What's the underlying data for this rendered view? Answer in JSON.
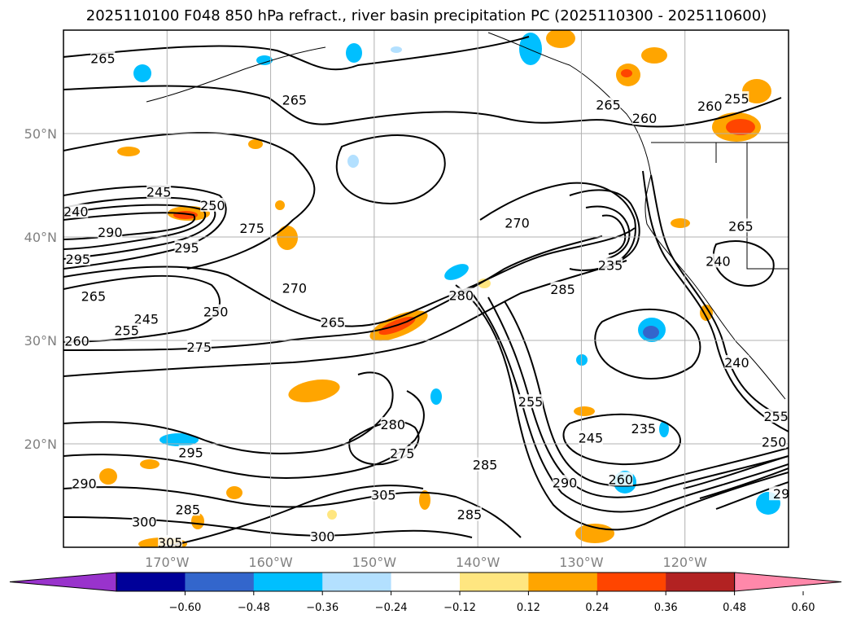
{
  "title": "2025110100 F048 850 hPa refract., river basin precipitation PC (2025110300 - 2025110600)",
  "colors": {
    "background": "#ffffff",
    "contour": "#000000",
    "grid": "#b0b0b0",
    "coast": "#000000"
  },
  "map": {
    "lon_range": [
      -180,
      -110
    ],
    "lat_range": [
      10,
      60
    ],
    "lat_ticks": [
      {
        "value": 20,
        "label": "20°N"
      },
      {
        "value": 30,
        "label": "30°N"
      },
      {
        "value": 40,
        "label": "40°N"
      },
      {
        "value": 50,
        "label": "50°N"
      }
    ],
    "lon_ticks": [
      {
        "value": -170,
        "label": "170°W"
      },
      {
        "value": -160,
        "label": "160°W"
      },
      {
        "value": -150,
        "label": "150°W"
      },
      {
        "value": -140,
        "label": "140°W"
      },
      {
        "value": -130,
        "label": "130°W"
      },
      {
        "value": -120,
        "label": "120°W"
      }
    ],
    "contour_labels": [
      {
        "text": "265",
        "lon": -176.2,
        "lat": 57.2
      },
      {
        "text": "265",
        "lon": -157.7,
        "lat": 53.2
      },
      {
        "text": "265",
        "lon": -127.4,
        "lat": 52.7
      },
      {
        "text": "260",
        "lon": -123.9,
        "lat": 51.4
      },
      {
        "text": "260",
        "lon": -117.6,
        "lat": 52.6
      },
      {
        "text": "255",
        "lon": -115.0,
        "lat": 53.3
      },
      {
        "text": "240",
        "lon": -178.8,
        "lat": 42.4
      },
      {
        "text": "245",
        "lon": -170.8,
        "lat": 44.3
      },
      {
        "text": "290",
        "lon": -175.5,
        "lat": 40.4
      },
      {
        "text": "295",
        "lon": -178.6,
        "lat": 37.8
      },
      {
        "text": "295",
        "lon": -168.1,
        "lat": 38.9
      },
      {
        "text": "275",
        "lon": -161.8,
        "lat": 40.8
      },
      {
        "text": "250",
        "lon": -165.6,
        "lat": 43.0
      },
      {
        "text": "270",
        "lon": -157.7,
        "lat": 35.0
      },
      {
        "text": "270",
        "lon": -136.2,
        "lat": 41.3
      },
      {
        "text": "265",
        "lon": -177.1,
        "lat": 34.2
      },
      {
        "text": "245",
        "lon": -172.0,
        "lat": 32.0
      },
      {
        "text": "250",
        "lon": -165.3,
        "lat": 32.7
      },
      {
        "text": "255",
        "lon": -173.9,
        "lat": 30.9
      },
      {
        "text": "260",
        "lon": -178.7,
        "lat": 29.9
      },
      {
        "text": "265",
        "lon": -154.0,
        "lat": 31.7
      },
      {
        "text": "275",
        "lon": -166.9,
        "lat": 29.3
      },
      {
        "text": "280",
        "lon": -141.6,
        "lat": 34.3
      },
      {
        "text": "285",
        "lon": -131.8,
        "lat": 34.9
      },
      {
        "text": "235",
        "lon": -127.2,
        "lat": 37.2
      },
      {
        "text": "240",
        "lon": -116.8,
        "lat": 37.6
      },
      {
        "text": "265",
        "lon": -114.6,
        "lat": 41.0
      },
      {
        "text": "255",
        "lon": -134.9,
        "lat": 24.0
      },
      {
        "text": "280",
        "lon": -148.2,
        "lat": 21.8
      },
      {
        "text": "275",
        "lon": -147.3,
        "lat": 19.0
      },
      {
        "text": "245",
        "lon": -129.1,
        "lat": 20.5
      },
      {
        "text": "235",
        "lon": -124.0,
        "lat": 21.4
      },
      {
        "text": "285",
        "lon": -139.3,
        "lat": 17.9
      },
      {
        "text": "290",
        "lon": -131.6,
        "lat": 16.2
      },
      {
        "text": "260",
        "lon": -126.2,
        "lat": 16.5
      },
      {
        "text": "295",
        "lon": -167.7,
        "lat": 19.1
      },
      {
        "text": "290",
        "lon": -178.0,
        "lat": 16.1
      },
      {
        "text": "285",
        "lon": -168.0,
        "lat": 13.6
      },
      {
        "text": "300",
        "lon": -172.2,
        "lat": 12.4
      },
      {
        "text": "305",
        "lon": -149.1,
        "lat": 15.0
      },
      {
        "text": "285",
        "lon": -140.8,
        "lat": 13.1
      },
      {
        "text": "305",
        "lon": -169.7,
        "lat": 10.4
      },
      {
        "text": "250",
        "lon": -111.4,
        "lat": 20.1
      },
      {
        "text": "240",
        "lon": -115.0,
        "lat": 27.8
      },
      {
        "text": "300",
        "lon": -155.0,
        "lat": 11.0
      },
      {
        "text": "255",
        "lon": -111.2,
        "lat": 22.6
      },
      {
        "text": "29",
        "lon": -110.7,
        "lat": 15.1
      }
    ]
  },
  "colorbar": {
    "colors": [
      "#9933cc",
      "#000099",
      "#3366cc",
      "#00bfff",
      "#b3e0ff",
      "#ffffff",
      "#ffe680",
      "#ffa500",
      "#ff4500",
      "#b22222",
      "#ff88aa"
    ],
    "ticks": [
      "−0.60",
      "−0.48",
      "−0.36",
      "−0.24",
      "−0.12",
      "0.12",
      "0.24",
      "0.36",
      "0.48",
      "0.60"
    ]
  }
}
